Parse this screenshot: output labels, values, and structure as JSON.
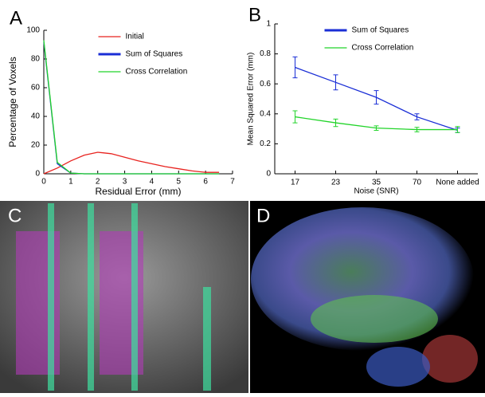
{
  "chart_data": [
    {
      "type": "line",
      "panel": "A",
      "xlabel": "Residual Error (mm)",
      "ylabel": "Percentage of Voxels",
      "x": [
        0,
        0.5,
        1,
        1.5,
        2,
        2.5,
        3,
        3.5,
        4,
        4.5,
        5,
        5.5,
        6,
        6.5
      ],
      "series": [
        {
          "name": "Initial",
          "color": "#e8231f",
          "values": [
            0,
            4,
            9,
            13,
            15,
            14,
            11.5,
            9,
            7,
            5,
            3.5,
            2,
            1,
            1
          ]
        },
        {
          "name": "Sum of Squares",
          "color": "#1a2ed6",
          "values": [
            92,
            7,
            0.5,
            0,
            0,
            0,
            0,
            0,
            0,
            0,
            0,
            0,
            0,
            0
          ]
        },
        {
          "name": "Cross Correlation",
          "color": "#22d42a",
          "values": [
            93,
            8,
            0.5,
            0,
            0,
            0,
            0,
            0,
            0,
            0,
            0,
            0,
            0,
            0
          ]
        }
      ],
      "xlim": [
        0,
        7
      ],
      "xticks": [
        0,
        1,
        2,
        3,
        4,
        5,
        6,
        7
      ],
      "ylim": [
        0,
        100
      ],
      "yticks": [
        0,
        20,
        40,
        60,
        80,
        100
      ],
      "legend": "upper center"
    },
    {
      "type": "errorline",
      "panel": "B",
      "xlabel": "Noise (SNR)",
      "ylabel": "Mean Squared Error (mm)",
      "categories": [
        "17",
        "23",
        "35",
        "70",
        "None added"
      ],
      "series": [
        {
          "name": "Sum of Squares",
          "color": "#1a2ed6",
          "values": [
            0.71,
            0.61,
            0.51,
            0.38,
            0.29
          ],
          "errors": [
            0.07,
            0.05,
            0.045,
            0.02,
            0.015
          ]
        },
        {
          "name": "Cross Correlation",
          "color": "#22d42a",
          "values": [
            0.38,
            0.34,
            0.305,
            0.295,
            0.295
          ],
          "errors": [
            0.04,
            0.025,
            0.015,
            0.015,
            0.02
          ]
        }
      ],
      "ylim": [
        0,
        1
      ],
      "yticks": [
        0,
        0.2,
        0.4,
        0.6,
        0.8,
        1
      ],
      "legend": "upper center"
    }
  ],
  "panels": {
    "c": "C",
    "d": "D"
  }
}
